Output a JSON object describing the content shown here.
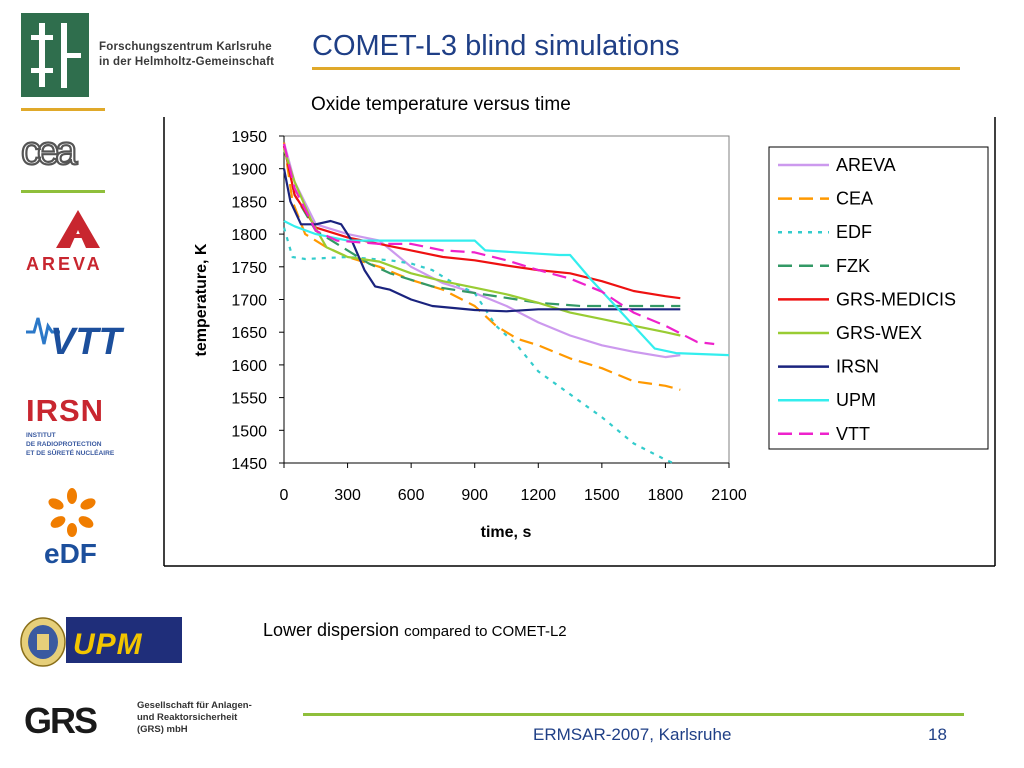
{
  "header": {
    "title": "COMET-L3 blind simulations",
    "org_line1": "Forschungszentrum Karlsruhe",
    "org_line2": "in der Helmholtz-Gemeinschaft"
  },
  "logos": {
    "cea": "cea",
    "areva": "AREVA",
    "vtt": "VTT",
    "irsn": "IRSN",
    "irsn_sub1": "INSTITUT",
    "irsn_sub2": "DE RADIOPROTECTION",
    "irsn_sub3": "ET DE SÛRETÉ NUCLÉAIRE",
    "edf": "eDF",
    "upm": "UPM",
    "grs": "GRS",
    "grs_sub1": "Gesellschaft für Anlagen-",
    "grs_sub2": "und Reaktorsicherheit",
    "grs_sub3": "(GRS) mbH"
  },
  "note": {
    "main": "Lower dispersion ",
    "small": "compared to COMET-L2"
  },
  "footer": {
    "event": "ERMSAR-2007, Karlsruhe",
    "page": "18"
  },
  "colors": {
    "title_blue": "#1f3f86",
    "accent_orange": "#e0a92a",
    "accent_green": "#8fbf3b"
  },
  "chart_data": {
    "type": "line",
    "title": "Oxide temperature versus time",
    "xlabel": "time, s",
    "ylabel": "temperature, K",
    "xlim": [
      0,
      2100
    ],
    "ylim": [
      1450,
      1950
    ],
    "xticks": [
      0,
      300,
      600,
      900,
      1200,
      1500,
      1800,
      2100
    ],
    "yticks": [
      1450,
      1500,
      1550,
      1600,
      1650,
      1700,
      1750,
      1800,
      1850,
      1900,
      1950
    ],
    "grid": false,
    "legend_position": "right",
    "series": [
      {
        "name": "AREVA",
        "color": "#cc99ee",
        "dash": "solid",
        "points": [
          [
            0,
            1940
          ],
          [
            50,
            1880
          ],
          [
            150,
            1815
          ],
          [
            300,
            1800
          ],
          [
            450,
            1790
          ],
          [
            600,
            1750
          ],
          [
            750,
            1725
          ],
          [
            900,
            1710
          ],
          [
            1050,
            1690
          ],
          [
            1200,
            1665
          ],
          [
            1350,
            1645
          ],
          [
            1500,
            1630
          ],
          [
            1650,
            1620
          ],
          [
            1800,
            1612
          ],
          [
            1870,
            1615
          ]
        ]
      },
      {
        "name": "CEA",
        "color": "#ff9900",
        "dash": "dashed",
        "points": [
          [
            0,
            1940
          ],
          [
            40,
            1850
          ],
          [
            100,
            1800
          ],
          [
            200,
            1780
          ],
          [
            300,
            1765
          ],
          [
            450,
            1750
          ],
          [
            600,
            1730
          ],
          [
            750,
            1715
          ],
          [
            900,
            1690
          ],
          [
            1000,
            1660
          ],
          [
            1100,
            1640
          ],
          [
            1200,
            1630
          ],
          [
            1350,
            1610
          ],
          [
            1500,
            1595
          ],
          [
            1650,
            1575
          ],
          [
            1800,
            1568
          ],
          [
            1870,
            1562
          ]
        ]
      },
      {
        "name": "EDF",
        "color": "#33cccc",
        "dash": "dotted",
        "points": [
          [
            0,
            1810
          ],
          [
            40,
            1765
          ],
          [
            100,
            1762
          ],
          [
            300,
            1765
          ],
          [
            500,
            1760
          ],
          [
            600,
            1755
          ],
          [
            700,
            1745
          ],
          [
            800,
            1725
          ],
          [
            900,
            1710
          ],
          [
            1000,
            1660
          ],
          [
            1100,
            1630
          ],
          [
            1200,
            1590
          ],
          [
            1350,
            1555
          ],
          [
            1500,
            1520
          ],
          [
            1650,
            1480
          ],
          [
            1800,
            1455
          ],
          [
            1850,
            1448
          ]
        ]
      },
      {
        "name": "FZK",
        "color": "#339966",
        "dash": "dashed",
        "points": [
          [
            0,
            1935
          ],
          [
            50,
            1860
          ],
          [
            150,
            1805
          ],
          [
            300,
            1775
          ],
          [
            400,
            1755
          ],
          [
            500,
            1740
          ],
          [
            700,
            1720
          ],
          [
            900,
            1710
          ],
          [
            1100,
            1700
          ],
          [
            1200,
            1695
          ],
          [
            1400,
            1690
          ],
          [
            1600,
            1690
          ],
          [
            1800,
            1690
          ],
          [
            1870,
            1690
          ]
        ]
      },
      {
        "name": "GRS-MEDICIS",
        "color": "#ee1111",
        "dash": "solid",
        "points": [
          [
            0,
            1935
          ],
          [
            50,
            1860
          ],
          [
            150,
            1810
          ],
          [
            300,
            1795
          ],
          [
            450,
            1785
          ],
          [
            600,
            1775
          ],
          [
            750,
            1765
          ],
          [
            900,
            1760
          ],
          [
            1050,
            1752
          ],
          [
            1200,
            1745
          ],
          [
            1350,
            1740
          ],
          [
            1500,
            1728
          ],
          [
            1650,
            1713
          ],
          [
            1800,
            1705
          ],
          [
            1870,
            1702
          ]
        ]
      },
      {
        "name": "GRS-WEX",
        "color": "#99cc33",
        "dash": "solid",
        "points": [
          [
            0,
            1930
          ],
          [
            50,
            1880
          ],
          [
            130,
            1820
          ],
          [
            200,
            1780
          ],
          [
            300,
            1765
          ],
          [
            450,
            1758
          ],
          [
            600,
            1740
          ],
          [
            750,
            1728
          ],
          [
            900,
            1718
          ],
          [
            1050,
            1708
          ],
          [
            1200,
            1695
          ],
          [
            1350,
            1680
          ],
          [
            1500,
            1670
          ],
          [
            1650,
            1660
          ],
          [
            1800,
            1650
          ],
          [
            1870,
            1645
          ]
        ]
      },
      {
        "name": "IRSN",
        "color": "#1a237e",
        "dash": "solid",
        "points": [
          [
            0,
            1900
          ],
          [
            30,
            1850
          ],
          [
            80,
            1815
          ],
          [
            150,
            1815
          ],
          [
            220,
            1820
          ],
          [
            270,
            1815
          ],
          [
            320,
            1790
          ],
          [
            380,
            1745
          ],
          [
            430,
            1720
          ],
          [
            500,
            1715
          ],
          [
            600,
            1700
          ],
          [
            700,
            1690
          ],
          [
            900,
            1684
          ],
          [
            1050,
            1682
          ],
          [
            1200,
            1685
          ],
          [
            1400,
            1685
          ],
          [
            1600,
            1685
          ],
          [
            1800,
            1685
          ],
          [
            1870,
            1685
          ]
        ]
      },
      {
        "name": "UPM",
        "color": "#33eeee",
        "dash": "solid",
        "points": [
          [
            0,
            1820
          ],
          [
            50,
            1812
          ],
          [
            150,
            1800
          ],
          [
            300,
            1790
          ],
          [
            500,
            1790
          ],
          [
            700,
            1790
          ],
          [
            900,
            1790
          ],
          [
            950,
            1775
          ],
          [
            1100,
            1772
          ],
          [
            1200,
            1770
          ],
          [
            1300,
            1768
          ],
          [
            1350,
            1768
          ],
          [
            1450,
            1730
          ],
          [
            1550,
            1695
          ],
          [
            1650,
            1660
          ],
          [
            1750,
            1625
          ],
          [
            1850,
            1618
          ],
          [
            2100,
            1615
          ]
        ]
      },
      {
        "name": "VTT",
        "color": "#ee22cc",
        "dash": "dashed",
        "points": [
          [
            0,
            1938
          ],
          [
            50,
            1870
          ],
          [
            150,
            1805
          ],
          [
            250,
            1790
          ],
          [
            450,
            1785
          ],
          [
            600,
            1785
          ],
          [
            750,
            1775
          ],
          [
            900,
            1772
          ],
          [
            1050,
            1760
          ],
          [
            1200,
            1745
          ],
          [
            1350,
            1732
          ],
          [
            1500,
            1712
          ],
          [
            1650,
            1680
          ],
          [
            1800,
            1660
          ],
          [
            1950,
            1635
          ],
          [
            2030,
            1632
          ]
        ]
      }
    ]
  }
}
